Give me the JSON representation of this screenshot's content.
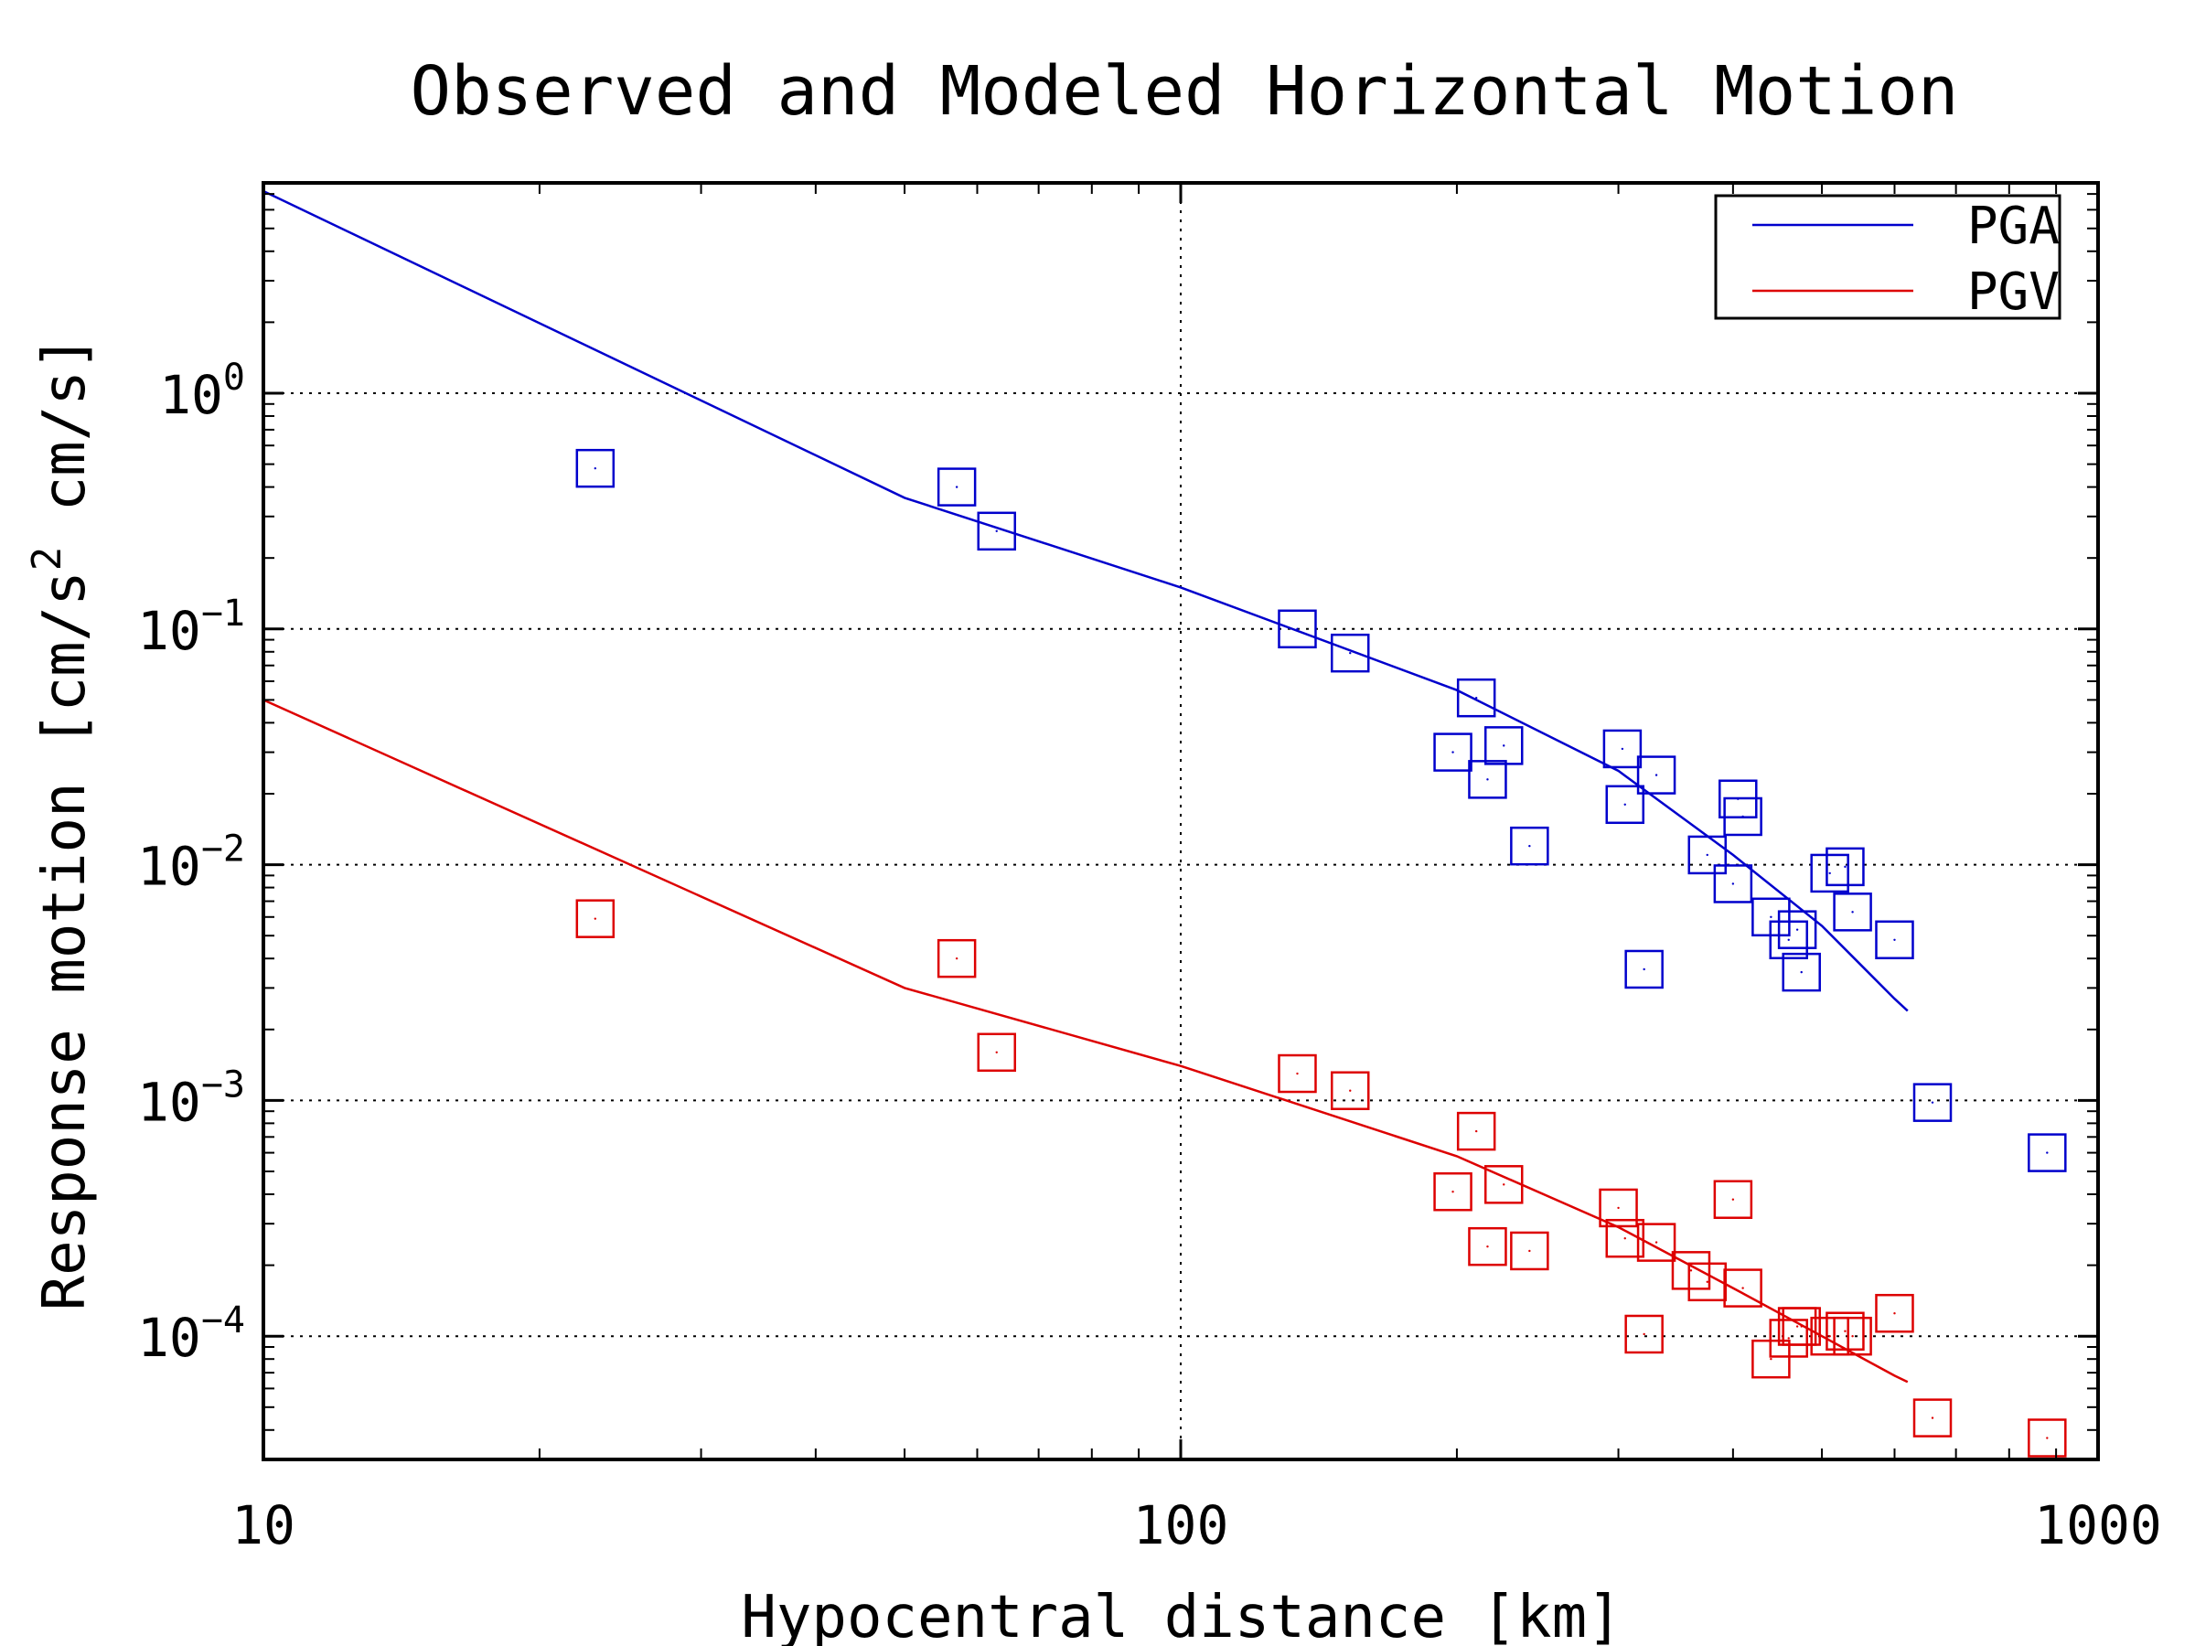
{
  "chart_data": {
    "type": "scatter",
    "title": "Observed and Modeled Horizontal Motion",
    "xlabel": "Hypocentral distance [km]",
    "ylabel": "Response motion  [cm/s",
    "ylabel_sup": "2",
    "ylabel_tail": "  cm/s]",
    "x_scale": "log",
    "y_scale": "log",
    "xlim": [
      10,
      1000
    ],
    "ylim": [
      3e-05,
      7.8
    ],
    "grid": true,
    "legend_position": "top-right",
    "x_ticks": [
      {
        "value": 10,
        "label": "10"
      },
      {
        "value": 100,
        "label": "100"
      },
      {
        "value": 1000,
        "label": "1000"
      }
    ],
    "y_ticks": [
      {
        "value": 1,
        "base": "10",
        "exp": "0"
      },
      {
        "value": 0.1,
        "base": "10",
        "exp": "−1"
      },
      {
        "value": 0.01,
        "base": "10",
        "exp": "−2"
      },
      {
        "value": 0.001,
        "base": "10",
        "exp": "−3"
      },
      {
        "value": 0.0001,
        "base": "10",
        "exp": "−4"
      }
    ],
    "series": [
      {
        "name": "PGA",
        "color": "#0000cc",
        "model_line": {
          "x": [
            10,
            50,
            100,
            200,
            300,
            400,
            500,
            600,
            620
          ],
          "y": [
            7.2,
            0.36,
            0.15,
            0.055,
            0.025,
            0.011,
            0.0055,
            0.0027,
            0.0024
          ]
        },
        "observed": {
          "x": [
            23,
            57,
            63,
            134,
            153,
            210,
            198,
            216,
            225,
            240,
            303,
            305,
            330,
            375,
            400,
            405,
            410,
            440,
            460,
            470,
            475,
            510,
            530,
            540,
            600,
            320,
            660,
            880
          ],
          "y": [
            0.48,
            0.4,
            0.26,
            0.1,
            0.079,
            0.051,
            0.03,
            0.023,
            0.032,
            0.012,
            0.031,
            0.018,
            0.024,
            0.011,
            0.0083,
            0.019,
            0.016,
            0.006,
            0.0048,
            0.0053,
            0.0035,
            0.0092,
            0.0098,
            0.0063,
            0.0048,
            0.0036,
            0.00098,
            0.0006
          ]
        }
      },
      {
        "name": "PGV",
        "color": "#dd0000",
        "model_line": {
          "x": [
            10,
            50,
            100,
            200,
            300,
            400,
            500,
            600,
            620
          ],
          "y": [
            0.05,
            0.003,
            0.0014,
            0.00058,
            0.00029,
            0.00016,
            0.0001,
            6.8e-05,
            6.4e-05
          ]
        },
        "observed": {
          "x": [
            23,
            57,
            63,
            134,
            153,
            210,
            198,
            216,
            225,
            240,
            300,
            305,
            330,
            360,
            375,
            400,
            410,
            440,
            460,
            470,
            475,
            510,
            530,
            540,
            600,
            320,
            660,
            880
          ],
          "y": [
            0.0059,
            0.004,
            0.0016,
            0.0013,
            0.0011,
            0.00074,
            0.00041,
            0.00024,
            0.00044,
            0.00023,
            0.00035,
            0.00026,
            0.00025,
            0.00019,
            0.00017,
            0.00038,
            0.00016,
            8e-05,
            9.8e-05,
            0.00011,
            0.00011,
            0.0001,
            0.000105,
            0.0001,
            0.000125,
            0.000102,
            4.5e-05,
            3.7e-05
          ]
        }
      }
    ]
  }
}
